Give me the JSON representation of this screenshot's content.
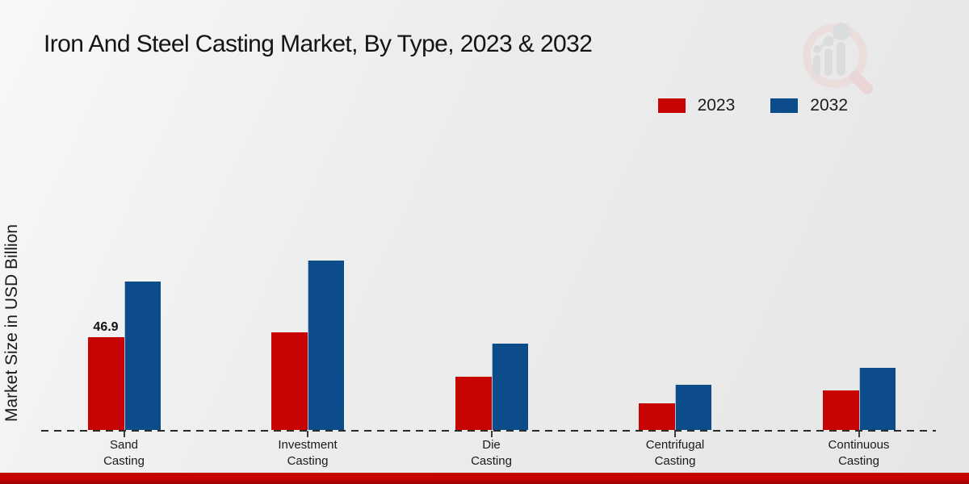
{
  "page": {
    "title": "Iron And Steel Casting Market, By Type, 2023 & 2032",
    "y_axis_label": "Market Size in USD Billion"
  },
  "legend": {
    "items": [
      {
        "label": "2023",
        "color": "#c60404"
      },
      {
        "label": "2032",
        "color": "#0d4c8a"
      }
    ]
  },
  "colors": {
    "accent_red_2023": "#c60404",
    "accent_blue_2032": "#0d4c8a",
    "footer_band_red": "#c50303",
    "background_gray": "#ececed",
    "baseline_dash": "#2a2a2a"
  },
  "logo": {
    "description": "magnifier-growth-chart-watermark",
    "ring_color": "#eddbdb",
    "bars_color": "#d9dadb"
  },
  "chart_data": {
    "type": "bar",
    "title": "Iron And Steel Casting Market, By Type, 2023 & 2032",
    "xlabel": "",
    "ylabel": "Market Size in USD Billion",
    "categories": [
      "Sand Casting",
      "Investment Casting",
      "Die Casting",
      "Centrifugal Casting",
      "Continuous Casting"
    ],
    "series": [
      {
        "name": "2023",
        "color": "#c60404",
        "values": [
          46.9,
          49.3,
          27.0,
          13.5,
          20.0
        ]
      },
      {
        "name": "2032",
        "color": "#0d4c8a",
        "values": [
          75.0,
          85.5,
          43.5,
          23.0,
          31.5
        ]
      }
    ],
    "visible_data_labels": [
      {
        "category": "Sand Casting",
        "series": "2023",
        "text": "46.9"
      }
    ],
    "ylim": [
      0,
      95
    ],
    "grid": false,
    "axis_style": "dashed-baseline-only",
    "legend_position": "top-right"
  }
}
